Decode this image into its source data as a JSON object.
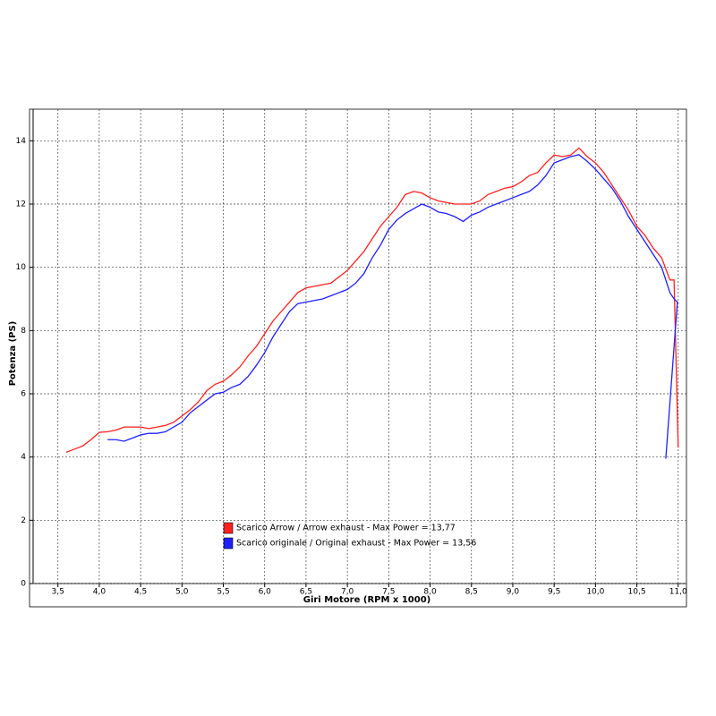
{
  "chart_data": {
    "type": "line",
    "xlabel": "Giri Motore (RPM x 1000)",
    "ylabel": "Potenza (PS)",
    "xlim": [
      3.2,
      11.1
    ],
    "ylim": [
      0,
      15
    ],
    "xticks": [
      {
        "value": 3.5,
        "label": "3,5"
      },
      {
        "value": 4.0,
        "label": "4,0"
      },
      {
        "value": 4.5,
        "label": "4,5"
      },
      {
        "value": 5.0,
        "label": "5,0"
      },
      {
        "value": 5.5,
        "label": "5,5"
      },
      {
        "value": 6.0,
        "label": "6,0"
      },
      {
        "value": 6.5,
        "label": "6,5"
      },
      {
        "value": 7.0,
        "label": "7,0"
      },
      {
        "value": 7.5,
        "label": "7,5"
      },
      {
        "value": 8.0,
        "label": "8,0"
      },
      {
        "value": 8.5,
        "label": "8,5"
      },
      {
        "value": 9.0,
        "label": "9,0"
      },
      {
        "value": 9.5,
        "label": "9,5"
      },
      {
        "value": 10.0,
        "label": "10,0"
      },
      {
        "value": 10.5,
        "label": "10,5"
      },
      {
        "value": 11.0,
        "label": "11,0"
      }
    ],
    "yticks": [
      0,
      2,
      4,
      6,
      8,
      10,
      12,
      14
    ],
    "grid": true,
    "series": [
      {
        "name": "Scarico Arrow / Arrow exhaust - Max Power = 13,77",
        "color": "#ff2020",
        "x": [
          3.6,
          3.7,
          3.8,
          3.9,
          4.0,
          4.1,
          4.2,
          4.3,
          4.4,
          4.5,
          4.6,
          4.7,
          4.8,
          4.9,
          5.0,
          5.1,
          5.2,
          5.3,
          5.4,
          5.5,
          5.6,
          5.7,
          5.8,
          5.9,
          6.0,
          6.1,
          6.2,
          6.3,
          6.4,
          6.5,
          6.6,
          6.7,
          6.8,
          6.9,
          7.0,
          7.1,
          7.2,
          7.3,
          7.4,
          7.5,
          7.6,
          7.7,
          7.8,
          7.9,
          8.0,
          8.1,
          8.2,
          8.3,
          8.4,
          8.5,
          8.6,
          8.7,
          8.8,
          8.9,
          9.0,
          9.1,
          9.2,
          9.3,
          9.4,
          9.5,
          9.6,
          9.7,
          9.8,
          9.9,
          10.0,
          10.1,
          10.2,
          10.3,
          10.4,
          10.5,
          10.6,
          10.7,
          10.8,
          10.9,
          10.95,
          11.0
        ],
        "values": [
          4.15,
          4.25,
          4.35,
          4.55,
          4.78,
          4.8,
          4.85,
          4.95,
          4.95,
          4.95,
          4.9,
          4.95,
          5.0,
          5.1,
          5.3,
          5.5,
          5.75,
          6.1,
          6.3,
          6.4,
          6.6,
          6.85,
          7.2,
          7.5,
          7.9,
          8.3,
          8.6,
          8.9,
          9.2,
          9.35,
          9.4,
          9.45,
          9.5,
          9.7,
          9.9,
          10.2,
          10.5,
          10.9,
          11.3,
          11.6,
          11.9,
          12.3,
          12.4,
          12.35,
          12.2,
          12.1,
          12.05,
          12.0,
          12.0,
          12.0,
          12.1,
          12.3,
          12.4,
          12.5,
          12.55,
          12.7,
          12.9,
          13.0,
          13.3,
          13.55,
          13.5,
          13.55,
          13.77,
          13.5,
          13.3,
          13.0,
          12.6,
          12.2,
          11.8,
          11.3,
          11.0,
          10.6,
          10.3,
          9.6,
          9.6,
          4.3
        ]
      },
      {
        "name": "Scarico originale / Original exhaust - Max Power = 13,56",
        "color": "#2020ff",
        "x": [
          4.1,
          4.2,
          4.3,
          4.4,
          4.5,
          4.6,
          4.7,
          4.8,
          4.9,
          5.0,
          5.1,
          5.2,
          5.3,
          5.4,
          5.5,
          5.6,
          5.7,
          5.8,
          5.9,
          6.0,
          6.1,
          6.2,
          6.3,
          6.4,
          6.5,
          6.6,
          6.7,
          6.8,
          6.9,
          7.0,
          7.1,
          7.2,
          7.3,
          7.4,
          7.5,
          7.6,
          7.7,
          7.8,
          7.9,
          8.0,
          8.1,
          8.2,
          8.3,
          8.4,
          8.5,
          8.6,
          8.7,
          8.8,
          8.9,
          9.0,
          9.1,
          9.2,
          9.3,
          9.4,
          9.5,
          9.6,
          9.7,
          9.8,
          9.9,
          10.0,
          10.1,
          10.2,
          10.3,
          10.4,
          10.5,
          10.6,
          10.7,
          10.8,
          10.9,
          10.95,
          10.99,
          10.85
        ],
        "values": [
          4.55,
          4.55,
          4.5,
          4.6,
          4.7,
          4.75,
          4.75,
          4.8,
          4.95,
          5.1,
          5.4,
          5.6,
          5.8,
          6.0,
          6.05,
          6.2,
          6.3,
          6.55,
          6.9,
          7.3,
          7.8,
          8.2,
          8.6,
          8.85,
          8.9,
          8.95,
          9.0,
          9.1,
          9.2,
          9.3,
          9.5,
          9.8,
          10.3,
          10.7,
          11.2,
          11.5,
          11.7,
          11.85,
          12.0,
          11.9,
          11.75,
          11.7,
          11.6,
          11.45,
          11.65,
          11.75,
          11.9,
          12.0,
          12.1,
          12.2,
          12.3,
          12.4,
          12.6,
          12.9,
          13.3,
          13.4,
          13.5,
          13.56,
          13.35,
          13.1,
          12.8,
          12.5,
          12.1,
          11.6,
          11.2,
          10.8,
          10.4,
          10.0,
          9.2,
          9.0,
          8.9,
          3.95
        ]
      }
    ]
  }
}
